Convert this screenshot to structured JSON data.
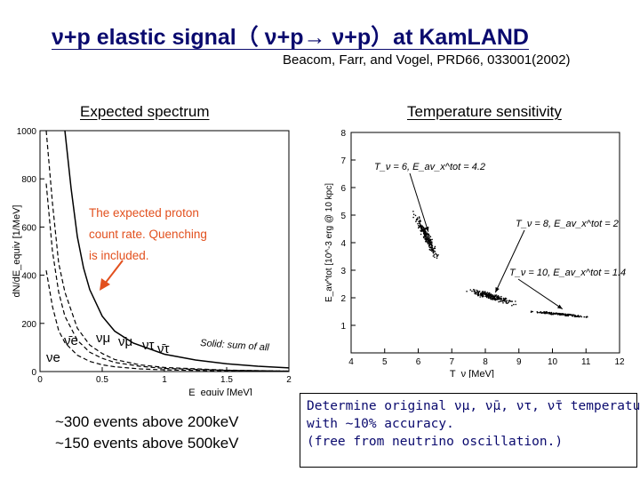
{
  "slide": {
    "title": "ν+p elastic signal（ ν+p→ ν+p）at KamLAND",
    "reference": "Beacom, Farr, and Vogel, PRD66, 033001(2002)",
    "left_heading": "Expected spectrum",
    "right_heading": "Temperature sensitivity",
    "events_line1": "~300 events above 200keV",
    "events_line2": "~150 events above 500keV",
    "note_line1": "Determine original νμ, ν̄μ, ντ, ν̄τ temperature",
    "note_line2": "with ~10% accuracy.",
    "note_line3": "(free from neutrino oscillation.)"
  },
  "chart_data": [
    {
      "type": "line",
      "xlabel": "E_equiv [MeV]",
      "ylabel": "dN/dE_equiv [1/MeV]",
      "xlim": [
        0,
        2
      ],
      "ylim": [
        0,
        1000
      ],
      "x_ticks": [
        "0",
        "0.5",
        "1",
        "1.5",
        "2"
      ],
      "y_ticks": [
        "0",
        "200",
        "400",
        "600",
        "800",
        "1000"
      ],
      "annotation": "The expected proton count rate. Quenching is included.",
      "solid_label": "Solid: sum of all",
      "flavor_labels": [
        "ν̄e",
        "νe",
        "νμ",
        "ν̄μ",
        "ντ",
        "ν̄τ"
      ],
      "series": [
        {
          "name": "Solid: sum of all",
          "style": "solid",
          "x": [
            0.2,
            0.25,
            0.3,
            0.35,
            0.4,
            0.5,
            0.6,
            0.75,
            1.0,
            1.25,
            1.5,
            1.75,
            2.0
          ],
          "values": [
            1000,
            760,
            560,
            430,
            340,
            230,
            168,
            118,
            72,
            48,
            32,
            22,
            15
          ]
        },
        {
          "style": "dashed",
          "x": [
            0.05,
            0.1,
            0.15,
            0.2,
            0.3,
            0.4,
            0.5,
            0.6,
            0.8,
            1.0,
            1.5,
            2.0
          ],
          "values": [
            1000,
            700,
            450,
            330,
            180,
            110,
            75,
            50,
            28,
            17,
            6,
            2
          ]
        },
        {
          "style": "dashed",
          "x": [
            0.05,
            0.1,
            0.15,
            0.2,
            0.3,
            0.4,
            0.5,
            0.6,
            0.8,
            1.0,
            1.5,
            2.0
          ],
          "values": [
            780,
            500,
            330,
            230,
            130,
            80,
            55,
            38,
            22,
            13,
            5,
            2
          ]
        },
        {
          "style": "dashed",
          "x": [
            0.05,
            0.1,
            0.15,
            0.2,
            0.3,
            0.4,
            0.5,
            0.6,
            0.8,
            1.0,
            1.5,
            2.0
          ],
          "values": [
            420,
            270,
            170,
            120,
            68,
            42,
            28,
            20,
            11,
            7,
            3,
            1
          ]
        }
      ],
      "color": "#000000",
      "annotation_color": "#e2501e"
    },
    {
      "type": "scatter",
      "xlabel": "T_ν [MeV]",
      "ylabel": "E_av^tot [10^-3 erg @ 10 kpc]",
      "xlim": [
        4,
        12
      ],
      "ylim": [
        0,
        8
      ],
      "x_ticks": [
        "4",
        "5",
        "6",
        "7",
        "8",
        "9",
        "10",
        "11",
        "12"
      ],
      "y_ticks": [
        "1",
        "2",
        "3",
        "4",
        "5",
        "6",
        "7",
        "8"
      ],
      "annotations": [
        {
          "text": "T_ν = 6, E_av_x^tot = 4.2",
          "target": [
            6.3,
            4.2
          ]
        },
        {
          "text": "T_ν = 8, E_av_x^tot = 2",
          "target": [
            8.3,
            2.0
          ]
        },
        {
          "text": "T_ν = 10, E_av_x^tot = 1.4",
          "target": [
            10.3,
            1.4
          ]
        }
      ],
      "clusters": [
        {
          "center": [
            6.25,
            4.2
          ],
          "spread": [
            0.3,
            0.6
          ],
          "slope": -2.1,
          "n": 220
        },
        {
          "center": [
            8.15,
            2.05
          ],
          "spread": [
            0.6,
            0.3
          ],
          "slope": -0.35,
          "n": 230
        },
        {
          "center": [
            10.25,
            1.4
          ],
          "spread": [
            0.7,
            0.12
          ],
          "slope": -0.12,
          "n": 140
        }
      ],
      "color": "#000000"
    }
  ]
}
